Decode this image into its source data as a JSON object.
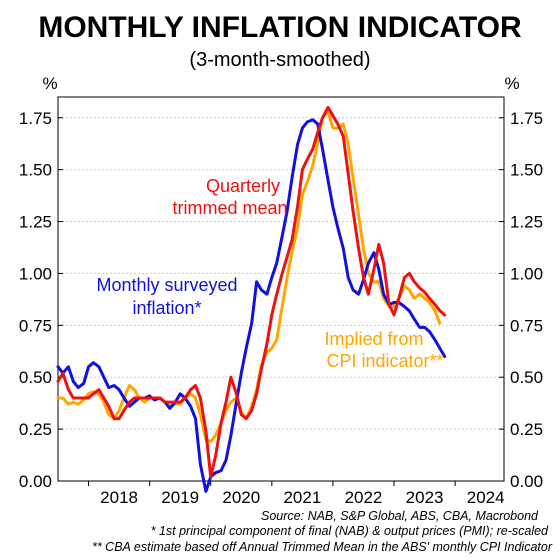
{
  "chart_data": {
    "type": "line",
    "title": "MONTHLY INFLATION INDICATOR",
    "subtitle": "(3-month-smoothed)",
    "ylabel_left": "%",
    "ylabel_right": "%",
    "xlim": [
      2017.5,
      2024.8
    ],
    "ylim": [
      0,
      1.85
    ],
    "y_ticks": [
      0.0,
      0.25,
      0.5,
      0.75,
      1.0,
      1.25,
      1.5,
      1.75
    ],
    "y_tick_labels": [
      "0.00",
      "0.25",
      "0.50",
      "0.75",
      "1.00",
      "1.25",
      "1.50",
      "1.75"
    ],
    "x_ticks": [
      2018,
      2019,
      2020,
      2021,
      2022,
      2023,
      2024
    ],
    "x_tick_labels": [
      "2018",
      "2019",
      "2020",
      "2021",
      "2022",
      "2023",
      "2024"
    ],
    "grid": true,
    "series": [
      {
        "name": "Quarterly trimmed mean",
        "color": "#ee1111",
        "points": [
          [
            2017.5,
            0.48
          ],
          [
            2017.58,
            0.52
          ],
          [
            2017.67,
            0.44
          ],
          [
            2017.75,
            0.4
          ],
          [
            2017.83,
            0.4
          ],
          [
            2017.92,
            0.4
          ],
          [
            2018.0,
            0.4
          ],
          [
            2018.08,
            0.42
          ],
          [
            2018.17,
            0.44
          ],
          [
            2018.25,
            0.4
          ],
          [
            2018.33,
            0.36
          ],
          [
            2018.42,
            0.3
          ],
          [
            2018.5,
            0.3
          ],
          [
            2018.58,
            0.34
          ],
          [
            2018.67,
            0.38
          ],
          [
            2018.75,
            0.4
          ],
          [
            2018.83,
            0.4
          ],
          [
            2018.92,
            0.4
          ],
          [
            2019.0,
            0.4
          ],
          [
            2019.08,
            0.4
          ],
          [
            2019.17,
            0.4
          ],
          [
            2019.25,
            0.38
          ],
          [
            2019.33,
            0.38
          ],
          [
            2019.42,
            0.38
          ],
          [
            2019.5,
            0.38
          ],
          [
            2019.58,
            0.4
          ],
          [
            2019.67,
            0.44
          ],
          [
            2019.75,
            0.46
          ],
          [
            2019.83,
            0.4
          ],
          [
            2019.92,
            0.24
          ],
          [
            2020.0,
            0.02
          ],
          [
            2020.08,
            0.12
          ],
          [
            2020.17,
            0.28
          ],
          [
            2020.25,
            0.38
          ],
          [
            2020.33,
            0.5
          ],
          [
            2020.42,
            0.42
          ],
          [
            2020.5,
            0.32
          ],
          [
            2020.58,
            0.3
          ],
          [
            2020.67,
            0.34
          ],
          [
            2020.75,
            0.42
          ],
          [
            2020.83,
            0.54
          ],
          [
            2020.92,
            0.66
          ],
          [
            2021.0,
            0.8
          ],
          [
            2021.08,
            0.9
          ],
          [
            2021.17,
            1.0
          ],
          [
            2021.25,
            1.08
          ],
          [
            2021.33,
            1.16
          ],
          [
            2021.42,
            1.32
          ],
          [
            2021.5,
            1.5
          ],
          [
            2021.58,
            1.55
          ],
          [
            2021.67,
            1.6
          ],
          [
            2021.75,
            1.68
          ],
          [
            2021.83,
            1.75
          ],
          [
            2021.92,
            1.8
          ],
          [
            2022.0,
            1.76
          ],
          [
            2022.08,
            1.72
          ],
          [
            2022.17,
            1.66
          ],
          [
            2022.25,
            1.48
          ],
          [
            2022.33,
            1.3
          ],
          [
            2022.42,
            1.12
          ],
          [
            2022.5,
            0.98
          ],
          [
            2022.58,
            0.9
          ],
          [
            2022.67,
            1.02
          ],
          [
            2022.75,
            1.14
          ],
          [
            2022.83,
            1.05
          ],
          [
            2022.92,
            0.85
          ],
          [
            2023.0,
            0.8
          ],
          [
            2023.08,
            0.88
          ],
          [
            2023.17,
            0.98
          ],
          [
            2023.25,
            1.0
          ],
          [
            2023.33,
            0.96
          ],
          [
            2023.42,
            0.93
          ],
          [
            2023.5,
            0.91
          ],
          [
            2023.58,
            0.88
          ],
          [
            2023.67,
            0.85
          ],
          [
            2023.75,
            0.82
          ],
          [
            2023.83,
            0.8
          ]
        ]
      },
      {
        "name": "Monthly surveyed inflation*",
        "color": "#1111dd",
        "points": [
          [
            2017.5,
            0.55
          ],
          [
            2017.58,
            0.52
          ],
          [
            2017.67,
            0.55
          ],
          [
            2017.75,
            0.48
          ],
          [
            2017.83,
            0.45
          ],
          [
            2017.92,
            0.47
          ],
          [
            2018.0,
            0.55
          ],
          [
            2018.08,
            0.57
          ],
          [
            2018.17,
            0.55
          ],
          [
            2018.25,
            0.5
          ],
          [
            2018.33,
            0.45
          ],
          [
            2018.42,
            0.46
          ],
          [
            2018.5,
            0.44
          ],
          [
            2018.58,
            0.4
          ],
          [
            2018.67,
            0.36
          ],
          [
            2018.75,
            0.38
          ],
          [
            2018.83,
            0.4
          ],
          [
            2018.92,
            0.4
          ],
          [
            2019.0,
            0.41
          ],
          [
            2019.08,
            0.39
          ],
          [
            2019.17,
            0.4
          ],
          [
            2019.25,
            0.38
          ],
          [
            2019.33,
            0.35
          ],
          [
            2019.42,
            0.38
          ],
          [
            2019.5,
            0.42
          ],
          [
            2019.58,
            0.4
          ],
          [
            2019.67,
            0.36
          ],
          [
            2019.75,
            0.3
          ],
          [
            2019.83,
            0.08
          ],
          [
            2019.92,
            -0.05
          ],
          [
            2020.0,
            0.02
          ],
          [
            2020.08,
            0.04
          ],
          [
            2020.17,
            0.05
          ],
          [
            2020.25,
            0.1
          ],
          [
            2020.33,
            0.22
          ],
          [
            2020.42,
            0.38
          ],
          [
            2020.5,
            0.52
          ],
          [
            2020.58,
            0.64
          ],
          [
            2020.67,
            0.76
          ],
          [
            2020.75,
            0.96
          ],
          [
            2020.83,
            0.92
          ],
          [
            2020.92,
            0.9
          ],
          [
            2021.0,
            0.98
          ],
          [
            2021.08,
            1.05
          ],
          [
            2021.17,
            1.18
          ],
          [
            2021.25,
            1.3
          ],
          [
            2021.33,
            1.46
          ],
          [
            2021.42,
            1.62
          ],
          [
            2021.5,
            1.7
          ],
          [
            2021.58,
            1.73
          ],
          [
            2021.67,
            1.74
          ],
          [
            2021.75,
            1.72
          ],
          [
            2021.83,
            1.6
          ],
          [
            2021.92,
            1.45
          ],
          [
            2022.0,
            1.32
          ],
          [
            2022.08,
            1.22
          ],
          [
            2022.17,
            1.12
          ],
          [
            2022.25,
            0.98
          ],
          [
            2022.33,
            0.92
          ],
          [
            2022.42,
            0.9
          ],
          [
            2022.5,
            0.97
          ],
          [
            2022.58,
            1.05
          ],
          [
            2022.67,
            1.1
          ],
          [
            2022.75,
            1.02
          ],
          [
            2022.83,
            0.9
          ],
          [
            2022.92,
            0.85
          ],
          [
            2023.0,
            0.86
          ],
          [
            2023.08,
            0.86
          ],
          [
            2023.17,
            0.84
          ],
          [
            2023.25,
            0.82
          ],
          [
            2023.33,
            0.78
          ],
          [
            2023.42,
            0.74
          ],
          [
            2023.5,
            0.74
          ],
          [
            2023.58,
            0.72
          ],
          [
            2023.67,
            0.68
          ],
          [
            2023.75,
            0.64
          ],
          [
            2023.83,
            0.6
          ]
        ]
      },
      {
        "name": "Implied from CPI indicator**",
        "color": "#ffa500",
        "points": [
          [
            2017.5,
            0.4
          ],
          [
            2017.58,
            0.4
          ],
          [
            2017.67,
            0.37
          ],
          [
            2017.75,
            0.38
          ],
          [
            2017.83,
            0.37
          ],
          [
            2017.92,
            0.39
          ],
          [
            2018.0,
            0.42
          ],
          [
            2018.08,
            0.43
          ],
          [
            2018.17,
            0.42
          ],
          [
            2018.25,
            0.38
          ],
          [
            2018.33,
            0.32
          ],
          [
            2018.42,
            0.3
          ],
          [
            2018.5,
            0.34
          ],
          [
            2018.58,
            0.4
          ],
          [
            2018.67,
            0.46
          ],
          [
            2018.75,
            0.44
          ],
          [
            2018.83,
            0.4
          ],
          [
            2018.92,
            0.38
          ],
          [
            2019.0,
            0.4
          ],
          [
            2019.08,
            0.4
          ],
          [
            2019.17,
            0.4
          ],
          [
            2019.25,
            0.38
          ],
          [
            2019.33,
            0.36
          ],
          [
            2019.42,
            0.37
          ],
          [
            2019.5,
            0.37
          ],
          [
            2019.58,
            0.4
          ],
          [
            2019.67,
            0.42
          ],
          [
            2019.75,
            0.4
          ],
          [
            2019.83,
            0.32
          ],
          [
            2019.92,
            0.2
          ],
          [
            2020.0,
            0.19
          ],
          [
            2020.08,
            0.22
          ],
          [
            2020.17,
            0.28
          ],
          [
            2020.25,
            0.34
          ],
          [
            2020.33,
            0.38
          ],
          [
            2020.42,
            0.4
          ],
          [
            2020.5,
            0.33
          ],
          [
            2020.58,
            0.3
          ],
          [
            2020.67,
            0.36
          ],
          [
            2020.75,
            0.44
          ],
          [
            2020.83,
            0.56
          ],
          [
            2020.92,
            0.62
          ],
          [
            2021.0,
            0.64
          ],
          [
            2021.08,
            0.68
          ],
          [
            2021.17,
            0.84
          ],
          [
            2021.25,
            0.98
          ],
          [
            2021.33,
            1.1
          ],
          [
            2021.42,
            1.22
          ],
          [
            2021.5,
            1.38
          ],
          [
            2021.58,
            1.44
          ],
          [
            2021.67,
            1.52
          ],
          [
            2021.75,
            1.63
          ],
          [
            2021.83,
            1.75
          ],
          [
            2021.92,
            1.78
          ],
          [
            2022.0,
            1.7
          ],
          [
            2022.08,
            1.7
          ],
          [
            2022.17,
            1.72
          ],
          [
            2022.25,
            1.62
          ],
          [
            2022.33,
            1.46
          ],
          [
            2022.42,
            1.28
          ],
          [
            2022.5,
            1.12
          ],
          [
            2022.58,
            1.0
          ],
          [
            2022.67,
            0.96
          ],
          [
            2022.75,
            0.96
          ],
          [
            2022.83,
            0.88
          ],
          [
            2022.92,
            0.84
          ],
          [
            2023.0,
            0.84
          ],
          [
            2023.08,
            0.88
          ],
          [
            2023.17,
            0.94
          ],
          [
            2023.25,
            0.92
          ],
          [
            2023.33,
            0.88
          ],
          [
            2023.42,
            0.9
          ],
          [
            2023.5,
            0.88
          ],
          [
            2023.58,
            0.86
          ],
          [
            2023.67,
            0.82
          ],
          [
            2023.75,
            0.76
          ]
        ]
      }
    ],
    "annotations": [
      {
        "lines": [
          "Quarterly",
          "trimmed mean"
        ],
        "color": "#ee1111"
      },
      {
        "lines": [
          "Monthly surveyed",
          "inflation*"
        ],
        "color": "#1111dd"
      },
      {
        "lines": [
          "Implied from",
          "CPI indicator**"
        ],
        "color": "#ffa500"
      }
    ],
    "footnotes": [
      "Source: NAB, S&P Global, ABS, CBA, Macrobond",
      "* 1st principal component of final (NAB) & output prices (PMI); re-scaled",
      "** CBA estimate based off Annual Trimmed Mean in the ABS' monthly CPI Indicator"
    ]
  }
}
